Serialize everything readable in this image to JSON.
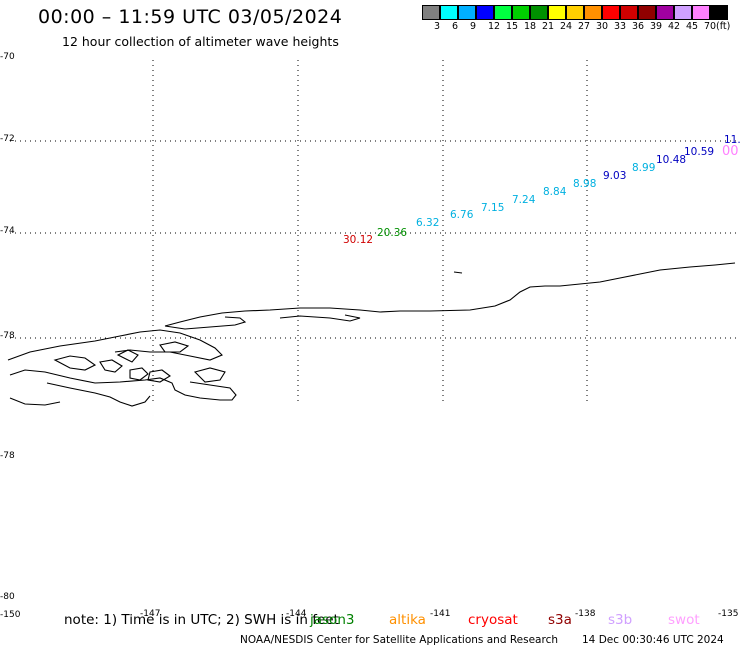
{
  "header": {
    "title": "00:00 – 11:59 UTC 03/05/2024",
    "subtitle": "12 hour collection of altimeter wave heights"
  },
  "legend": {
    "colors": [
      "#808080",
      "#00ffff",
      "#00b0ff",
      "#0000ff",
      "#00ff40",
      "#00d000",
      "#009000",
      "#ffff00",
      "#ffd000",
      "#ff9000",
      "#ff0000",
      "#d00000",
      "#900000",
      "#a000a0",
      "#d0a0ff",
      "#ff80ff",
      "#000000"
    ],
    "labels": [
      "3",
      "6",
      "9",
      "12",
      "15",
      "18",
      "21",
      "24",
      "27",
      "30",
      "33",
      "36",
      "39",
      "42",
      "45",
      "70",
      "(ft)"
    ]
  },
  "axes": {
    "lat_labels": [
      "-70",
      "-72",
      "-74",
      "-78",
      "-78",
      "-80"
    ],
    "lon_labels": [
      "-150",
      "-147",
      "-144",
      "-141",
      "-138",
      "-135"
    ]
  },
  "wave_labels": [
    {
      "text": "30.12",
      "color": "#d00000"
    },
    {
      "text": "20.36",
      "color": "#009000"
    },
    {
      "text": "6.32",
      "color": "#00b0e0"
    },
    {
      "text": "6.76",
      "color": "#00b0e0"
    },
    {
      "text": "7.15",
      "color": "#00b0e0"
    },
    {
      "text": "7.24",
      "color": "#00b0e0"
    },
    {
      "text": "8.84",
      "color": "#00b0e0"
    },
    {
      "text": "8.98",
      "color": "#00b0e0"
    },
    {
      "text": "9.03",
      "color": "#0000c0"
    },
    {
      "text": "8.99",
      "color": "#00b0e0"
    },
    {
      "text": "10.48",
      "color": "#0000c0"
    },
    {
      "text": "10.59",
      "color": "#0000c0"
    },
    {
      "text": "11.",
      "color": "#0000c0"
    },
    {
      "text": "00",
      "color": "#ff80ff"
    }
  ],
  "note": "note: 1) Time is in UTC; 2) SWH is in feet",
  "satellites": [
    {
      "name": "jason3",
      "color": "#008000"
    },
    {
      "name": "altika",
      "color": "#ff9000"
    },
    {
      "name": "cryosat",
      "color": "#ff0000"
    },
    {
      "name": "s3a",
      "color": "#900000"
    },
    {
      "name": "s3b",
      "color": "#d0a0ff"
    },
    {
      "name": "swot",
      "color": "#ffa0ff"
    }
  ],
  "footer": {
    "credit": "NOAA/NESDIS Center for Satellite Applications and Research",
    "generated": "14 Dec 00:30:46 UTC 2024"
  }
}
